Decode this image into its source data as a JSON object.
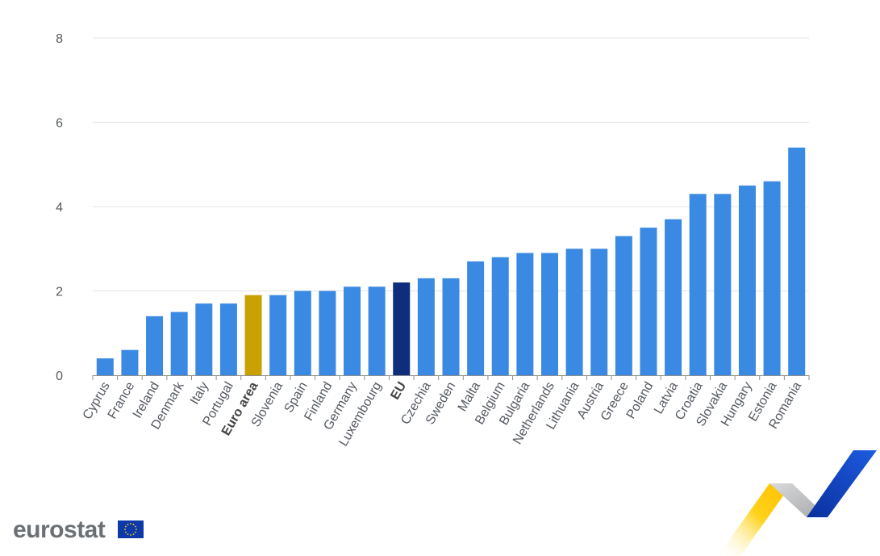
{
  "chart_data": {
    "type": "bar",
    "categories": [
      "Cyprus",
      "France",
      "Ireland",
      "Denmark",
      "Italy",
      "Portugal",
      "Euro area",
      "Slovenia",
      "Spain",
      "Finland",
      "Germany",
      "Luxembourg",
      "EU",
      "Czechia",
      "Sweden",
      "Malta",
      "Belgium",
      "Bulgaria",
      "Netherlands",
      "Lithuania",
      "Austria",
      "Greece",
      "Poland",
      "Latvia",
      "Croatia",
      "Slovakia",
      "Hungary",
      "Estonia",
      "Romania"
    ],
    "values": [
      0.4,
      0.6,
      1.4,
      1.5,
      1.7,
      1.7,
      1.9,
      1.9,
      2.0,
      2.0,
      2.1,
      2.1,
      2.2,
      2.3,
      2.3,
      2.7,
      2.8,
      2.9,
      2.9,
      3.0,
      3.0,
      3.3,
      3.5,
      3.7,
      4.3,
      4.3,
      4.5,
      4.6,
      5.4
    ],
    "highlight": {
      "Euro area": "#c9a100",
      "EU": "#0e2e7c"
    },
    "bold_categories": [
      "Euro area",
      "EU"
    ],
    "bar_color": "#3a8ae3",
    "ylim": [
      0,
      8
    ],
    "yticks": [
      0,
      2,
      4,
      6,
      8
    ],
    "grid": true,
    "title": "",
    "xlabel": "",
    "ylabel": ""
  },
  "branding": {
    "logo_text": "eurostat",
    "flag_color": "#0d3aa8",
    "star_color": "#ffd500"
  }
}
